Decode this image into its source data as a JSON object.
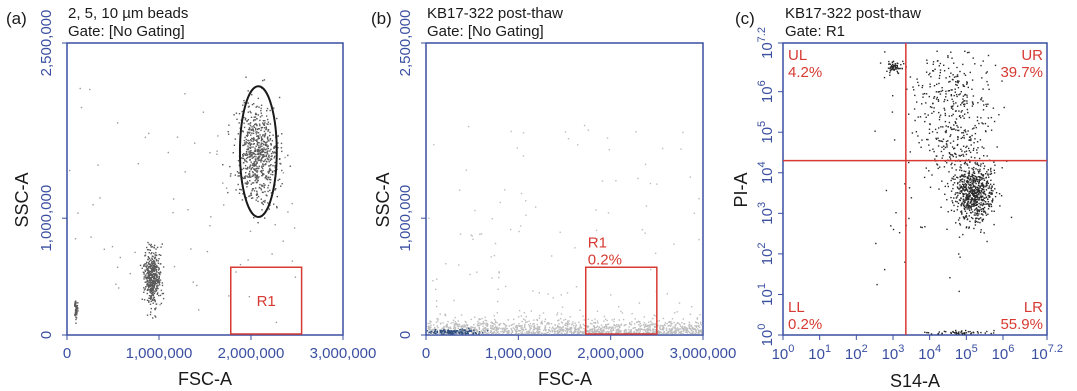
{
  "chart_data": [
    {
      "panel": "(a)",
      "type": "scatter",
      "title": "2, 5, 10 µm beads",
      "subtitle": "Gate: [No Gating]",
      "xlabel": "FSC-A",
      "ylabel": "SSC-A",
      "xlim": [
        0,
        3000000
      ],
      "ylim": [
        0,
        2500000
      ],
      "x_ticks": [
        0,
        1000000,
        2000000,
        3000000
      ],
      "x_tick_labels": [
        "0",
        "1,000,000",
        "2,000,000",
        "3,000,000"
      ],
      "y_ticks": [
        0,
        1000000,
        2500000
      ],
      "y_tick_labels": [
        "0",
        "1,000,000",
        "2,500,000"
      ],
      "clusters": [
        {
          "cx": 100000,
          "cy": 220000,
          "sx": 8000,
          "sy": 40000,
          "n": 60
        },
        {
          "cx": 930000,
          "cy": 490000,
          "sx": 45000,
          "sy": 120000,
          "n": 450
        },
        {
          "cx": 2080000,
          "cy": 1550000,
          "sx": 110000,
          "sy": 210000,
          "n": 700
        }
      ],
      "outliers": 70,
      "ellipse": {
        "cx": 2080000,
        "cy": 1570000,
        "rx": 200000,
        "ry": 560000
      },
      "gates": [
        {
          "name": "R1",
          "label": "R1",
          "x0": 1780000,
          "x1": 2550000,
          "y0": 0,
          "y1": 580000,
          "label_pos": "center"
        }
      ],
      "colors": {
        "axis": "#3a4fa0",
        "gate": "#d63a32",
        "ellipse": "#1a1a1a",
        "points": "#5a5a5a"
      }
    },
    {
      "panel": "(b)",
      "type": "scatter",
      "title": "KB17-322 post-thaw",
      "subtitle": "Gate: [No Gating]",
      "xlabel": "FSC-A",
      "ylabel": "SSC-A",
      "xlim": [
        0,
        3000000
      ],
      "ylim": [
        0,
        2500000
      ],
      "x_ticks": [
        0,
        1000000,
        2000000,
        3000000
      ],
      "x_tick_labels": [
        "0",
        "1,000,000",
        "2,000,000",
        "3,000,000"
      ],
      "y_ticks": [
        0,
        1000000,
        2500000
      ],
      "y_tick_labels": [
        "0",
        "1,000,000",
        "2,500,000"
      ],
      "band": {
        "x0": 20000,
        "x1": 3000000,
        "ymax": 120000,
        "n": 1400,
        "color": "#bdbdbd"
      },
      "scatter_points": 160,
      "dense": {
        "cx": 300000,
        "cy": 25000,
        "sx": 160000,
        "sy": 12000,
        "n": 150,
        "color": "#2f4f7f"
      },
      "gates": [
        {
          "name": "R1",
          "label": "R1",
          "percent": "0.2%",
          "x0": 1730000,
          "x1": 2500000,
          "y0": 0,
          "y1": 580000,
          "label_pos": "top-left"
        }
      ],
      "colors": {
        "axis": "#3a4fa0",
        "gate": "#d63a32",
        "points": "#bdbdbd"
      }
    },
    {
      "panel": "(c)",
      "type": "scatter",
      "title": "KB17-322 post-thaw",
      "subtitle": "Gate: R1",
      "xlabel": "S14-A",
      "ylabel": "PI-A",
      "xscale": "log",
      "yscale": "log",
      "xlim": [
        0,
        7.2
      ],
      "ylim": [
        0,
        7.2
      ],
      "x_ticks": [
        0,
        1,
        2,
        3,
        4,
        5,
        6,
        7.2
      ],
      "y_ticks": [
        0,
        1,
        2,
        3,
        4,
        5,
        6,
        7.2
      ],
      "tick_base": "10",
      "tick_exponents": [
        "0",
        "1",
        "2",
        "3",
        "4",
        "5",
        "6",
        "7.2"
      ],
      "quadrant_divider": {
        "x": 3.35,
        "y": 4.3
      },
      "quadrants": [
        {
          "name": "UL",
          "percent": "4.2%",
          "pos": "top-left"
        },
        {
          "name": "UR",
          "percent": "39.7%",
          "pos": "top-right"
        },
        {
          "name": "LL",
          "percent": "0.2%",
          "pos": "bottom-left"
        },
        {
          "name": "LR",
          "percent": "55.9%",
          "pos": "bottom-right"
        }
      ],
      "clusters": [
        {
          "cx": 5.2,
          "cy": 3.5,
          "sx": 0.28,
          "sy": 0.38,
          "n": 650
        },
        {
          "cx": 3.05,
          "cy": 6.6,
          "sx": 0.12,
          "sy": 0.08,
          "n": 60
        },
        {
          "cx": 4.6,
          "cy": 5.9,
          "sx": 0.55,
          "sy": 0.6,
          "n": 260
        },
        {
          "cx": 4.7,
          "cy": 4.6,
          "sx": 0.45,
          "sy": 0.5,
          "n": 160
        },
        {
          "cx": 4.8,
          "cy": 0.05,
          "sx": 0.5,
          "sy": 0.03,
          "n": 60
        }
      ],
      "outliers": 60,
      "colors": {
        "axis": "#3a4fa0",
        "gate": "#d63a32",
        "points": "#2a2a2a"
      }
    }
  ]
}
